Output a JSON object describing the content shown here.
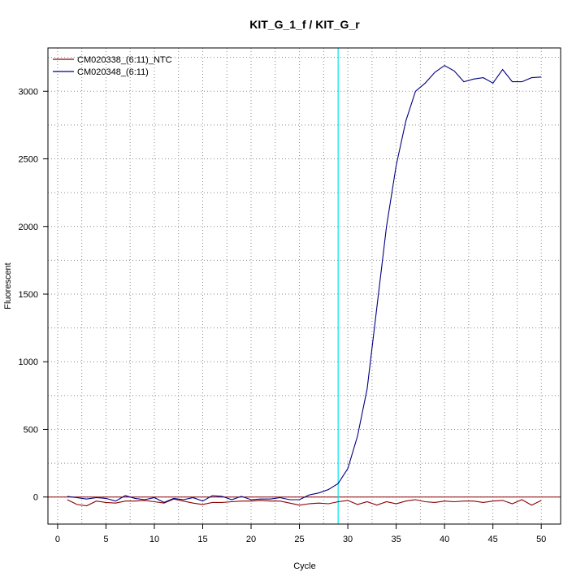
{
  "chart_data": {
    "type": "line",
    "title": "KIT_G_1_f / KIT_G_r",
    "xlabel": "Cycle",
    "ylabel": "Fluorescent",
    "xlim": [
      -1.0,
      52.0
    ],
    "ylim": [
      -200,
      3320
    ],
    "x_ticks": [
      0,
      5,
      10,
      15,
      20,
      25,
      30,
      35,
      40,
      45,
      50
    ],
    "y_ticks": [
      0,
      500,
      1000,
      1500,
      2000,
      2500,
      3000
    ],
    "grid": true,
    "legend_position": "top-left",
    "threshold": {
      "x": 29,
      "color": "#00e5ee"
    },
    "baseline": {
      "y": 0,
      "color": "#8b0000"
    },
    "x": [
      1,
      2,
      3,
      4,
      5,
      6,
      7,
      8,
      9,
      10,
      11,
      12,
      13,
      14,
      15,
      16,
      17,
      18,
      19,
      20,
      21,
      22,
      23,
      24,
      25,
      26,
      27,
      28,
      29,
      30,
      31,
      32,
      33,
      34,
      35,
      36,
      37,
      38,
      39,
      40,
      41,
      42,
      43,
      44,
      45,
      46,
      47,
      48,
      49,
      50
    ],
    "series": [
      {
        "name": "CM020338_(6:11)_NTC",
        "color": "#8b0000",
        "values": [
          -20,
          -55,
          -65,
          -30,
          -40,
          -45,
          -30,
          -30,
          -25,
          -35,
          -45,
          -15,
          -30,
          -45,
          -55,
          -40,
          -40,
          -35,
          -30,
          -30,
          -25,
          -30,
          -30,
          -45,
          -60,
          -50,
          -45,
          -50,
          -35,
          -25,
          -55,
          -35,
          -60,
          -35,
          -50,
          -30,
          -20,
          -35,
          -40,
          -30,
          -35,
          -30,
          -30,
          -40,
          -30,
          -25,
          -50,
          -20,
          -60,
          -25
        ]
      },
      {
        "name": "CM020348_(6:11)",
        "color": "#000080",
        "values": [
          5,
          -5,
          -15,
          -5,
          -10,
          -30,
          10,
          -10,
          -20,
          -5,
          -40,
          -10,
          -20,
          -5,
          -30,
          10,
          5,
          -20,
          5,
          -20,
          -15,
          -15,
          -5,
          -20,
          -20,
          15,
          30,
          55,
          100,
          210,
          450,
          800,
          1400,
          2000,
          2450,
          2780,
          3000,
          3060,
          3140,
          3190,
          3150,
          3070,
          3090,
          3100,
          3060,
          3160,
          3070,
          3070,
          3100,
          3105
        ]
      }
    ]
  }
}
